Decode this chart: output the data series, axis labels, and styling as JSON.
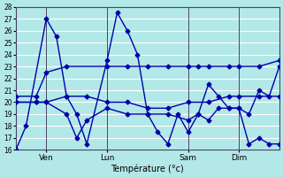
{
  "background_color": "#b3e8e8",
  "grid_color": "#ffffff",
  "line_color": "#0000aa",
  "marker": "D",
  "markersize": 2.5,
  "linewidth": 1.0,
  "xlabel": "Température (°c)",
  "ylim": [
    16,
    28
  ],
  "yticks": [
    16,
    17,
    18,
    19,
    20,
    21,
    22,
    23,
    24,
    25,
    26,
    27,
    28
  ],
  "xlim": [
    0,
    13
  ],
  "xtick_labels": [
    "Ven",
    "Lun",
    "Sam",
    "Dim"
  ],
  "xtick_positions": [
    1.5,
    4.5,
    8.5,
    11.0
  ],
  "vline_positions": [
    1.5,
    4.5,
    8.5,
    11.0
  ],
  "lines": [
    {
      "x": [
        0.0,
        0.5,
        1.5,
        2.0,
        2.5,
        3.0,
        3.5,
        4.5,
        5.0,
        5.5,
        6.0,
        6.5,
        7.0,
        7.5,
        8.0,
        8.5,
        9.0,
        9.5,
        10.0,
        10.5,
        11.0,
        11.5,
        12.0,
        12.5,
        13.0
      ],
      "y": [
        16,
        18,
        27,
        25.5,
        20.5,
        19,
        16.5,
        23.5,
        27.5,
        26,
        24,
        19,
        17.5,
        16.5,
        19,
        17.5,
        19,
        21.5,
        20.5,
        19.5,
        19.5,
        19,
        21,
        20.5,
        23
      ]
    },
    {
      "x": [
        0.0,
        1.0,
        1.5,
        2.5,
        4.5,
        5.5,
        6.5,
        7.5,
        8.5,
        9.0,
        9.5,
        10.5,
        11.0,
        12.0,
        13.0
      ],
      "y": [
        20.5,
        20.5,
        22.5,
        23,
        23,
        23,
        23,
        23,
        23,
        23,
        23,
        23,
        23,
        23,
        23.5
      ]
    },
    {
      "x": [
        0.0,
        1.0,
        1.5,
        2.5,
        3.5,
        4.5,
        5.5,
        6.5,
        7.5,
        8.5,
        9.5,
        10.5,
        11.0,
        12.0,
        13.0
      ],
      "y": [
        20,
        20,
        20,
        20.5,
        20.5,
        20,
        20,
        19.5,
        19.5,
        20,
        20,
        20.5,
        20.5,
        20.5,
        20.5
      ]
    },
    {
      "x": [
        0.0,
        1.0,
        1.5,
        2.5,
        3.0,
        3.5,
        4.5,
        5.5,
        6.5,
        7.5,
        8.5,
        9.0,
        9.5,
        10.0,
        10.5,
        11.0,
        11.5,
        12.0,
        12.5,
        13.0
      ],
      "y": [
        20,
        20,
        20,
        19,
        17,
        18.5,
        19.5,
        19,
        19,
        19,
        18.5,
        19,
        18.5,
        19.5,
        19.5,
        19.5,
        16.5,
        17,
        16.5,
        16.5
      ]
    }
  ]
}
